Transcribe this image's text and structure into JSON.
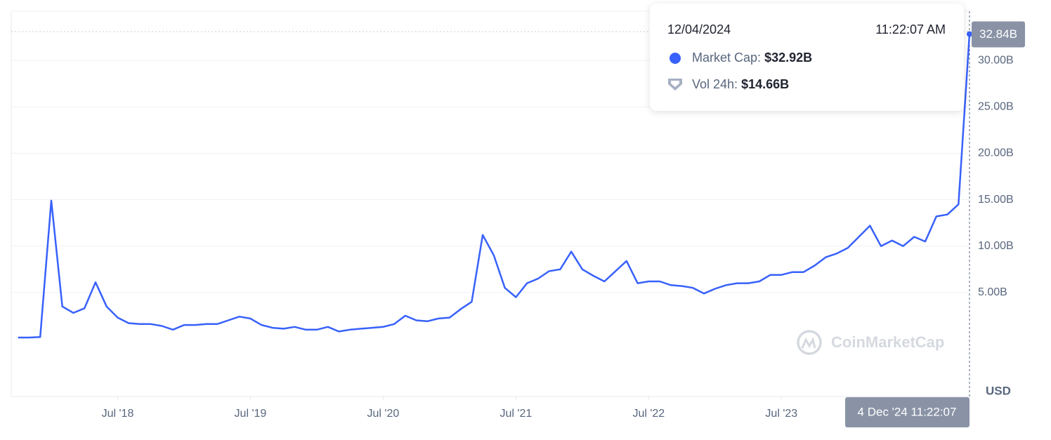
{
  "chart_data": {
    "type": "line",
    "x": [
      "2017-10",
      "2017-11",
      "2017-12",
      "2018-01",
      "2018-02",
      "2018-03",
      "2018-04",
      "2018-05",
      "2018-06",
      "2018-07",
      "2018-08",
      "2018-09",
      "2018-10",
      "2018-11",
      "2018-12",
      "2019-01",
      "2019-02",
      "2019-03",
      "2019-04",
      "2019-05",
      "2019-06",
      "2019-07",
      "2019-08",
      "2019-09",
      "2019-10",
      "2019-11",
      "2019-12",
      "2020-01",
      "2020-02",
      "2020-03",
      "2020-04",
      "2020-05",
      "2020-06",
      "2020-07",
      "2020-08",
      "2020-09",
      "2020-10",
      "2020-11",
      "2020-12",
      "2021-01",
      "2021-02",
      "2021-03",
      "2021-04",
      "2021-05",
      "2021-06",
      "2021-07",
      "2021-08",
      "2021-09",
      "2021-10",
      "2021-11",
      "2021-12",
      "2022-01",
      "2022-02",
      "2022-03",
      "2022-04",
      "2022-05",
      "2022-06",
      "2022-07",
      "2022-08",
      "2022-09",
      "2022-10",
      "2022-11",
      "2022-12",
      "2023-01",
      "2023-02",
      "2023-03",
      "2023-04",
      "2023-05",
      "2023-06",
      "2023-07",
      "2023-08",
      "2023-09",
      "2023-10",
      "2023-11",
      "2023-12",
      "2024-01",
      "2024-02",
      "2024-03",
      "2024-04",
      "2024-05",
      "2024-06",
      "2024-07",
      "2024-08",
      "2024-09",
      "2024-10",
      "2024-11",
      "2024-12"
    ],
    "series": [
      {
        "name": "Market Cap",
        "color": "#3861fb",
        "values": [
          0.15,
          0.15,
          0.2,
          14.9,
          3.5,
          2.8,
          3.3,
          6.1,
          3.5,
          2.3,
          1.7,
          1.6,
          1.6,
          1.4,
          1.0,
          1.5,
          1.5,
          1.6,
          1.6,
          2.0,
          2.4,
          2.2,
          1.5,
          1.2,
          1.1,
          1.3,
          1.0,
          1.0,
          1.3,
          0.8,
          1.0,
          1.1,
          1.2,
          1.3,
          1.6,
          2.5,
          2.0,
          1.9,
          2.2,
          2.3,
          3.2,
          4.0,
          11.2,
          9.0,
          5.5,
          4.5,
          6.0,
          6.5,
          7.3,
          7.5,
          9.4,
          7.5,
          6.8,
          6.2,
          7.3,
          8.4,
          6.0,
          6.2,
          6.2,
          5.8,
          5.7,
          5.5,
          4.9,
          5.4,
          5.8,
          6.0,
          6.0,
          6.2,
          6.9,
          6.9,
          7.2,
          7.2,
          7.9,
          8.8,
          9.2,
          9.8,
          11.0,
          12.2,
          10.0,
          10.6,
          10.0,
          11.0,
          10.5,
          13.2,
          13.4,
          14.5,
          32.84
        ],
        "value_labels": [
          null,
          null,
          null,
          null,
          null,
          null,
          null,
          null,
          null,
          null,
          null,
          null,
          null,
          null,
          null,
          null,
          null,
          null,
          null,
          null,
          null,
          null,
          null,
          null,
          null,
          null,
          null,
          null,
          null,
          null,
          null,
          null,
          null,
          null,
          null,
          null,
          null,
          null,
          null,
          null,
          null,
          null,
          null,
          null,
          null,
          null,
          null,
          null,
          null,
          null,
          null,
          null,
          null,
          null,
          null,
          null,
          null,
          null,
          null,
          null,
          null,
          null,
          null,
          null,
          null,
          null,
          null,
          null,
          null,
          null,
          null,
          null,
          null,
          null,
          null,
          null,
          null,
          null,
          null,
          null,
          null,
          null,
          null,
          null,
          null,
          null,
          "32.84B"
        ]
      }
    ],
    "xlim": [
      "2017-09",
      "2024-12"
    ],
    "xticks": [
      {
        "value": "2018-07",
        "label": "Jul '18"
      },
      {
        "value": "2019-07",
        "label": "Jul '19"
      },
      {
        "value": "2020-07",
        "label": "Jul '20"
      },
      {
        "value": "2021-07",
        "label": "Jul '21"
      },
      {
        "value": "2022-07",
        "label": "Jul '22"
      },
      {
        "value": "2023-07",
        "label": "Jul '23"
      }
    ],
    "ylim": [
      -6.2,
      35.3
    ],
    "yticks": [
      {
        "value": 5,
        "label": "5.00B"
      },
      {
        "value": 10,
        "label": "10.00B"
      },
      {
        "value": 15,
        "label": "15.00B"
      },
      {
        "value": 20,
        "label": "20.00B"
      },
      {
        "value": 25,
        "label": "25.00B"
      },
      {
        "value": 30,
        "label": "30.00B"
      }
    ],
    "grid": true,
    "y_unit": "USD",
    "crosshair_label": "4 Dec '24 11:22:07",
    "tooltip": {
      "date": "12/04/2024",
      "time": "11:22:07 AM",
      "market_cap_label": "Market Cap:",
      "market_cap": "$32.92B",
      "volume_label": "Vol 24h:",
      "volume": "$14.66B"
    },
    "watermark": "CoinMarketCap"
  }
}
